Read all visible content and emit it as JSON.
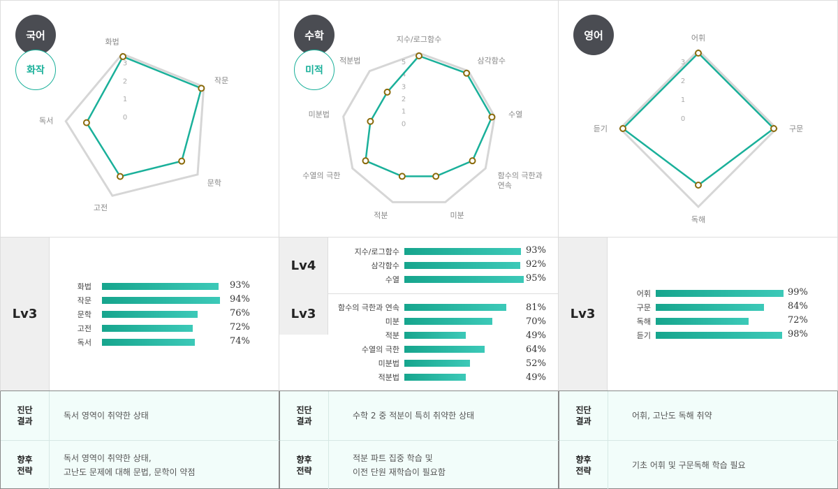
{
  "accent_color": "#1ab09a",
  "subject_circle_color": "#4a4c52",
  "columns": [
    {
      "subject": "국어",
      "sub_subject": "화작",
      "radar": {
        "axes": [
          "화법",
          "작문",
          "문학",
          "고전",
          "독서"
        ],
        "scale_labels": [
          "0",
          "1",
          "2",
          "3"
        ],
        "max": 3,
        "values": [
          3,
          3,
          2,
          2,
          2
        ]
      },
      "groups": [
        {
          "level": "Lv3",
          "rows": [
            {
              "label": "화법",
              "pct": 93,
              "text": "93%"
            },
            {
              "label": "작문",
              "pct": 94,
              "text": "94%"
            },
            {
              "label": "문학",
              "pct": 76,
              "text": "76%"
            },
            {
              "label": "고전",
              "pct": 72,
              "text": "72%"
            },
            {
              "label": "독서",
              "pct": 74,
              "text": "74%"
            }
          ]
        }
      ],
      "diagnosis": {
        "result_head": "진단\n결과",
        "result_lines": [
          "독서 영역이 취약한 상태"
        ],
        "strategy_head": "향후\n전략",
        "strategy_lines": [
          "독서 영역이 취약한 상태,",
          "고난도 문제에 대해 문법, 문학이 약점"
        ]
      }
    },
    {
      "subject": "수학",
      "sub_subject": "미적",
      "radar": {
        "axes": [
          "지수/로그함수",
          "삼각함수",
          "수열",
          "함수의 극한과\n연속",
          "미분",
          "적분",
          "수열의 극한",
          "미분법",
          "적분법"
        ],
        "scale_labels": [
          "0",
          "1",
          "2",
          "3",
          "4",
          "5"
        ],
        "max": 5,
        "values": [
          5,
          5,
          5,
          4,
          3,
          3,
          4,
          3,
          3
        ]
      },
      "groups": [
        {
          "level": "Lv4",
          "rows": [
            {
              "label": "지수/로그함수",
              "pct": 93,
              "text": "93%"
            },
            {
              "label": "삼각함수",
              "pct": 92,
              "text": "92%"
            },
            {
              "label": "수열",
              "pct": 95,
              "text": "95%"
            }
          ]
        },
        {
          "level": "Lv3",
          "rows": [
            {
              "label": "함수의 극한과 연속",
              "pct": 81,
              "text": "81%"
            },
            {
              "label": "미분",
              "pct": 70,
              "text": "70%"
            },
            {
              "label": "적분",
              "pct": 49,
              "text": "49%"
            },
            {
              "label": "수열의 극한",
              "pct": 64,
              "text": "64%"
            },
            {
              "label": "미분법",
              "pct": 52,
              "text": "52%"
            },
            {
              "label": "적분법",
              "pct": 49,
              "text": "49%"
            }
          ]
        }
      ],
      "diagnosis": {
        "result_head": "진단\n결과",
        "result_lines": [
          "수학 2 중 적분이 특히 취약한 상태"
        ],
        "strategy_head": "향후\n전략",
        "strategy_lines": [
          "적분 파트 집중 학습 및",
          "이전 단원 재학습이 필요함"
        ]
      }
    },
    {
      "subject": "영어",
      "sub_subject": "",
      "radar": {
        "axes": [
          "어휘",
          "구문",
          "독해",
          "듣기"
        ],
        "scale_labels": [
          "0",
          "1",
          "2",
          "3"
        ],
        "max": 3,
        "values": [
          3,
          3,
          2,
          3
        ]
      },
      "groups": [
        {
          "level": "Lv3",
          "rows": [
            {
              "label": "어휘",
              "pct": 99,
              "text": "99%"
            },
            {
              "label": "구문",
              "pct": 84,
              "text": "84%"
            },
            {
              "label": "독해",
              "pct": 72,
              "text": "72%"
            },
            {
              "label": "듣기",
              "pct": 98,
              "text": "98%"
            }
          ]
        }
      ],
      "diagnosis": {
        "result_head": "진단\n결과",
        "result_lines": [
          "어휘, 고난도 독해 취약"
        ],
        "strategy_head": "향후\n전략",
        "strategy_lines": [
          "기초 어휘 및 구문독해 학습 필요"
        ]
      }
    }
  ]
}
